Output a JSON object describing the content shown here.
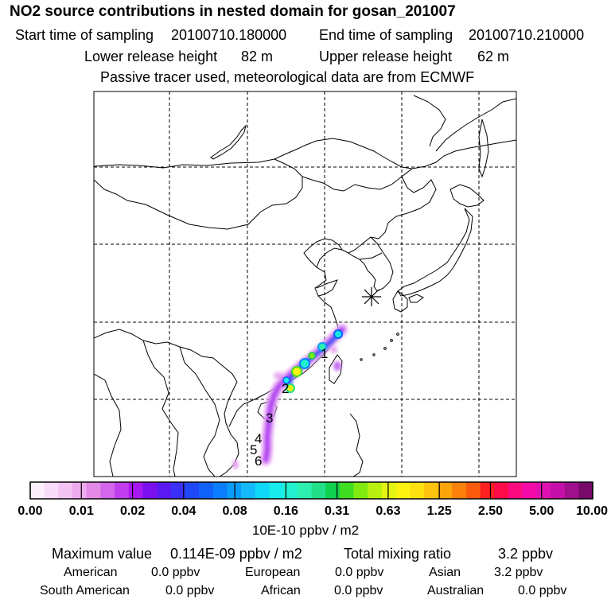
{
  "title": "NO2 source contributions in nested domain for gosan_201007",
  "sampling": {
    "start_label": "Start time of sampling",
    "start_value": "20100710.180000",
    "end_label": "End time of sampling",
    "end_value": "20100710.210000"
  },
  "release": {
    "lower_label": "Lower release height",
    "lower_value": "82 m",
    "upper_label": "Upper release height",
    "upper_value": "62 m"
  },
  "note": "Passive tracer used, meteorological data are from ECMWF",
  "map": {
    "receptor_marker": "asterisk",
    "trajectory_day_labels": [
      "1",
      "2",
      "3",
      "4",
      "5",
      "6"
    ]
  },
  "colorbar": {
    "tick_labels": [
      "0.00",
      "0.01",
      "0.02",
      "0.04",
      "0.08",
      "0.16",
      "0.31",
      "0.63",
      "1.25",
      "2.50",
      "5.00",
      "10.00"
    ],
    "colors": [
      "#fdf0fd",
      "#f9dcf9",
      "#f3c3f3",
      "#eeaaee",
      "#e28ae6",
      "#d466ec",
      "#c13ef0",
      "#a818f2",
      "#7a10ee",
      "#5a18f2",
      "#3a30f6",
      "#2048f8",
      "#1060fa",
      "#0a7efc",
      "#0a9cfc",
      "#14bafc",
      "#10d8f8",
      "#18ecec",
      "#22f0d0",
      "#2ef0b0",
      "#22e08a",
      "#10d050",
      "#40dc20",
      "#80ea10",
      "#b8f010",
      "#e4f412",
      "#fcf410",
      "#fce010",
      "#fcc40e",
      "#fca40c",
      "#fc800c",
      "#fc5a0c",
      "#fc2020",
      "#fc0a4a",
      "#fc0a80",
      "#f40aa8",
      "#e010b0",
      "#c410a8",
      "#a0108c",
      "#780a6a"
    ],
    "unit": "10E-10 ppbv / m2"
  },
  "summary": {
    "max_label": "Maximum value",
    "max_value": "0.114E-09 ppbv / m2",
    "total_label": "Total mixing ratio",
    "total_value": "3.2 ppbv"
  },
  "regions": [
    {
      "name": "American",
      "value": "0.0 ppbv"
    },
    {
      "name": "European",
      "value": "0.0 ppbv"
    },
    {
      "name": "Asian",
      "value": "3.2 ppbv"
    },
    {
      "name": "South American",
      "value": "0.0 ppbv"
    },
    {
      "name": "African",
      "value": "0.0 ppbv"
    },
    {
      "name": "Australian",
      "value": "0.0 ppbv"
    }
  ]
}
